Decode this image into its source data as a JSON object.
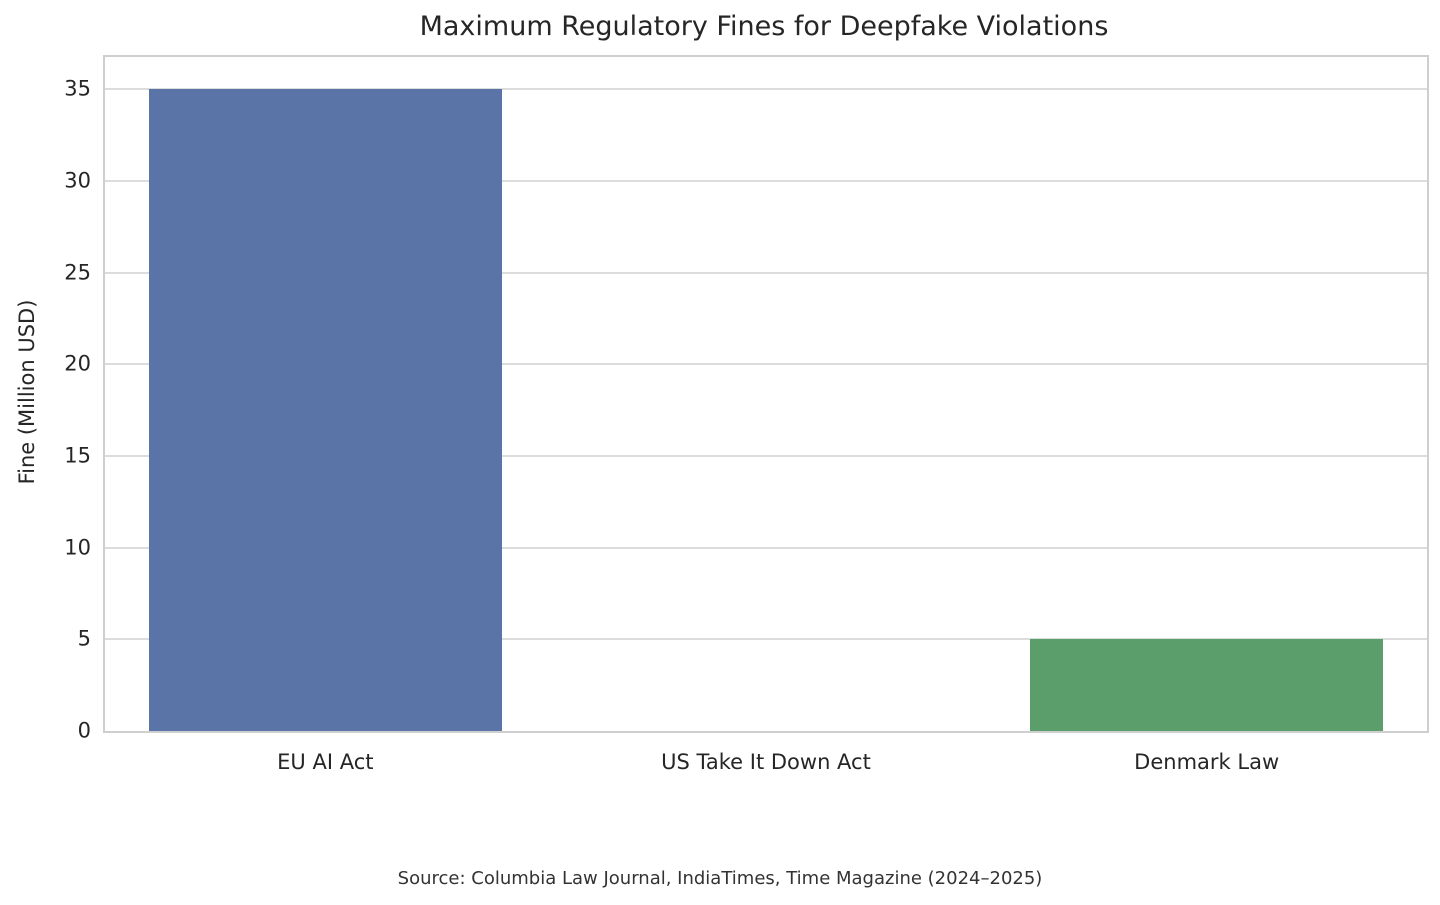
{
  "chart_data": {
    "type": "bar",
    "title": "Maximum Regulatory Fines for Deepfake Violations",
    "ylabel": "Fine (Million USD)",
    "xlabel": "",
    "categories": [
      "EU AI Act",
      "US Take It Down Act",
      "Denmark Law"
    ],
    "values": [
      35,
      0,
      5
    ],
    "bar_colors": [
      "#5a74a8",
      null,
      "#5b9e6b"
    ],
    "yticks": [
      0,
      5,
      10,
      15,
      20,
      25,
      30,
      35
    ],
    "ylim": [
      0,
      36.75
    ],
    "bar_width_fraction": 0.8,
    "grid": true,
    "legend": false,
    "background_color": "#ffffff",
    "grid_color": "#dcdcdc",
    "source_annotation": "Source: Columbia Law Journal, IndiaTimes, Time Magazine (2024–2025)"
  }
}
